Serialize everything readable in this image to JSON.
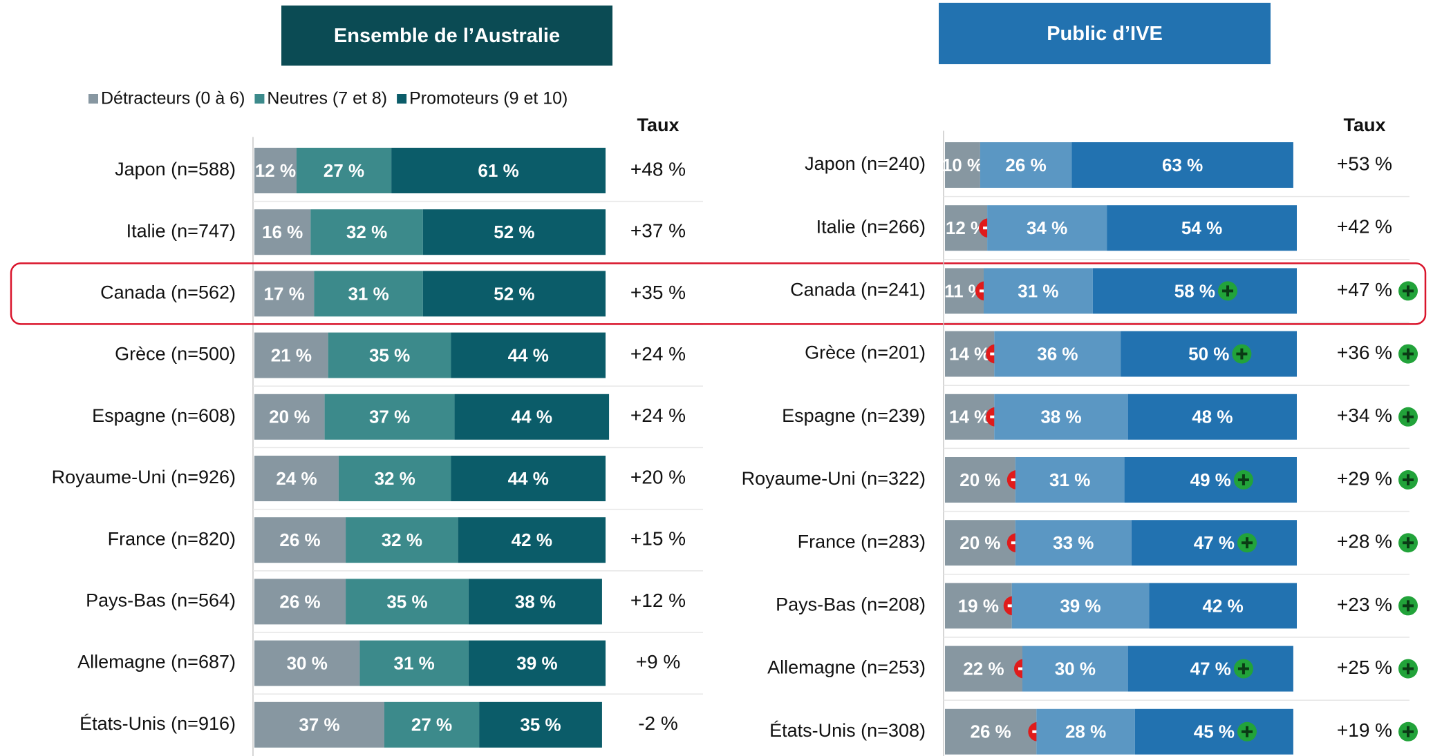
{
  "chart_data": [
    {
      "type": "stacked-bar",
      "title": "Ensemble de l’Australie",
      "header_color": "#0b4b54",
      "categories": [
        "Japon (n=588)",
        "Italie (n=747)",
        "Canada (n=562)",
        "Grèce (n=500)",
        "Espagne (n=608)",
        "Royaume-Uni (n=926)",
        "France (n=820)",
        "Pays-Bas (n=564)",
        "Allemagne (n=687)",
        "États-Unis (n=916)"
      ],
      "xlim": [
        0,
        100
      ],
      "legend": "top",
      "series": [
        {
          "name": "Détracteurs (0 à 6)",
          "color": "#8797a1",
          "values": [
            12,
            16,
            17,
            21,
            20,
            24,
            26,
            26,
            30,
            37
          ],
          "value_labels": [
            "12 %",
            "16 %",
            "17 %",
            "21 %",
            "20 %",
            "24 %",
            "26 %",
            "26 %",
            "30 %",
            "37 %"
          ]
        },
        {
          "name": "Neutres (7 et 8)",
          "color": "#3c8a8b",
          "values": [
            27,
            32,
            31,
            35,
            37,
            32,
            32,
            35,
            31,
            27
          ],
          "value_labels": [
            "27 %",
            "32 %",
            "31 %",
            "35 %",
            "37 %",
            "32 %",
            "32 %",
            "35 %",
            "31 %",
            "27 %"
          ]
        },
        {
          "name": "Promoteurs (9 et 10)",
          "color": "#0b5c69",
          "values": [
            61,
            52,
            52,
            44,
            44,
            44,
            42,
            38,
            39,
            35
          ],
          "value_labels": [
            "61 %",
            "52 %",
            "52 %",
            "44 %",
            "44 %",
            "44 %",
            "42 %",
            "38 %",
            "39 %",
            "35 %"
          ]
        }
      ],
      "net_score": {
        "title": "Taux",
        "values": [
          48,
          37,
          35,
          24,
          24,
          20,
          15,
          12,
          9,
          -2
        ],
        "value_labels": [
          "+48 %",
          "+37 %",
          "+35 %",
          "+24 %",
          "+24 %",
          "+20 %",
          "+15 %",
          "+12 %",
          "+9 %",
          "-2 %"
        ]
      },
      "highlight": "Canada (n=562)"
    },
    {
      "type": "stacked-bar",
      "title": "Public d’IVE",
      "header_color": "#2272b0",
      "categories": [
        "Japon (n=240)",
        "Italie (n=266)",
        "Canada (n=241)",
        "Grèce (n=201)",
        "Espagne (n=239)",
        "Royaume-Uni (n=322)",
        "France (n=283)",
        "Pays-Bas (n=208)",
        "Allemagne (n=253)",
        "États-Unis (n=308)"
      ],
      "xlim": [
        0,
        100
      ],
      "series": [
        {
          "color": "#8797a1",
          "values": [
            10,
            12,
            11,
            14,
            14,
            20,
            20,
            19,
            22,
            26
          ],
          "value_labels": [
            "10 %",
            "12 %",
            "11 %",
            "14 %",
            "14 %",
            "20 %",
            "20 %",
            "19 %",
            "22 %",
            "26 %"
          ],
          "lower": [
            false,
            true,
            true,
            true,
            true,
            true,
            true,
            true,
            true,
            true
          ]
        },
        {
          "color": "#5b97c3",
          "values": [
            26,
            34,
            31,
            36,
            38,
            31,
            33,
            39,
            30,
            28
          ],
          "value_labels": [
            "26 %",
            "34 %",
            "31 %",
            "36 %",
            "38 %",
            "31 %",
            "33 %",
            "39 %",
            "30 %",
            "28 %"
          ]
        },
        {
          "color": "#2272b0",
          "values": [
            63,
            54,
            58,
            50,
            48,
            49,
            47,
            42,
            47,
            45
          ],
          "value_labels": [
            "63 %",
            "54 %",
            "58 %",
            "50 %",
            "48 %",
            "49 %",
            "47 %",
            "42 %",
            "47 %",
            "45 %"
          ],
          "higher": [
            false,
            false,
            true,
            true,
            false,
            true,
            true,
            false,
            true,
            true
          ]
        }
      ],
      "net_score": {
        "title": "Taux",
        "values": [
          53,
          42,
          47,
          36,
          34,
          29,
          28,
          23,
          25,
          19
        ],
        "value_labels": [
          "+53 %",
          "+42 %",
          "+47 %",
          "+36 %",
          "+34 %",
          "+29 %",
          "+28 %",
          "+23 %",
          "+25 %",
          "+19 %"
        ],
        "higher": [
          false,
          false,
          true,
          true,
          true,
          true,
          true,
          true,
          true,
          true
        ]
      }
    }
  ]
}
